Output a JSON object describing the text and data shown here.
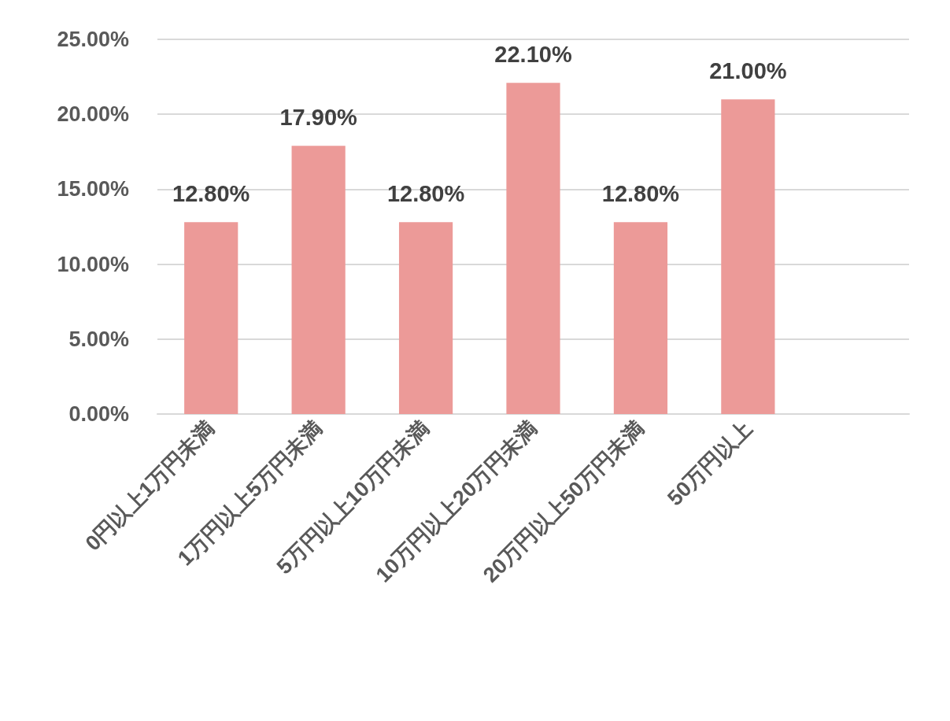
{
  "chart_data": {
    "type": "bar",
    "categories": [
      "0円以上1万円未満",
      "1万円以上5万円未満",
      "5万円以上10万円未満",
      "10万円以上20万円未満",
      "20万円以上50万円未満",
      "50万円以上",
      null
    ],
    "values": [
      12.8,
      17.9,
      12.8,
      22.1,
      12.8,
      21.0,
      null
    ],
    "value_labels": [
      "12.80%",
      "17.90%",
      "12.80%",
      "22.10%",
      "12.80%",
      "21.00%",
      null
    ],
    "color": "#ec9a98",
    "ylim": [
      0,
      25
    ],
    "yticks": [
      {
        "value": 0,
        "label": "0.00%"
      },
      {
        "value": 5,
        "label": "5.00%"
      },
      {
        "value": 10,
        "label": "10.00%"
      },
      {
        "value": 15,
        "label": "15.00%"
      },
      {
        "value": 20,
        "label": "20.00%"
      },
      {
        "value": 25,
        "label": "25.00%"
      }
    ],
    "grid": "y"
  }
}
